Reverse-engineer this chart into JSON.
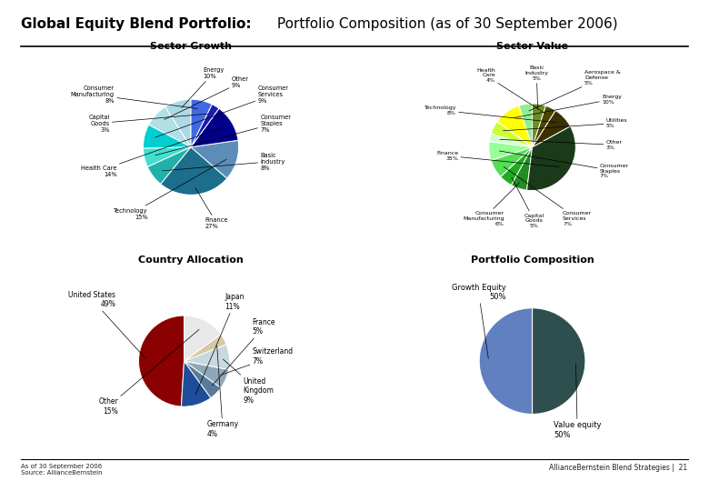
{
  "title_bold": "Global Equity Blend Portfolio:",
  "title_normal": " Portfolio Composition (as of 30 September 2006)",
  "sector_growth": {
    "title": "Sector Growth",
    "labels": [
      "Energy",
      "Other",
      "Consumer\nServices",
      "Consumer\nStaples",
      "Basic\nIndustry",
      "Finance",
      "Technology",
      "Health Care",
      "Capital\nGoods",
      "Consumer Manufacturing"
    ],
    "pcts": [
      "10%",
      "9%",
      "9%",
      "7%",
      "8%",
      "27%",
      "15%",
      "14%",
      "3%",
      "8%"
    ],
    "values": [
      10,
      9,
      9,
      7,
      8,
      27,
      15,
      14,
      3,
      8
    ],
    "colors": [
      "#ADD8E6",
      "#B0E0E6",
      "#00CED1",
      "#40E0D0",
      "#20B2AA",
      "#1C6E8C",
      "#5B8DB8",
      "#00008B",
      "#1B1BB3",
      "#4169E1"
    ]
  },
  "sector_value": {
    "title": "Sector Value",
    "labels": [
      "Aerospace &\nDefense",
      "Energy",
      "Utilities",
      "Other",
      "Consumer\nStaples",
      "Consumer\nServices",
      "Capital\nGoods",
      "Consumer\nManufacturing",
      "Finance",
      "Technology",
      "Health\nCare",
      "Basic\nIndustry"
    ],
    "pcts": [
      "5%",
      "10%",
      "5%",
      "3%",
      "7%",
      "7%",
      "5%",
      "6%",
      "35%",
      "8%",
      "4%",
      "5%"
    ],
    "values": [
      5,
      10,
      5,
      3,
      7,
      7,
      5,
      6,
      35,
      8,
      4,
      5
    ],
    "colors": [
      "#90EE90",
      "#FFFF00",
      "#CCFF33",
      "#CCFFCC",
      "#99FF99",
      "#55DD55",
      "#22AA22",
      "#228B22",
      "#1A3A1A",
      "#3B3000",
      "#4B4500",
      "#6B8E23"
    ]
  },
  "country_allocation": {
    "title": "Country Allocation",
    "labels": [
      "United States",
      "Japan",
      "France",
      "Switzerland",
      "United\nKingdom",
      "Germany",
      "Other"
    ],
    "pcts": [
      "49%",
      "11%",
      "5%",
      "7%",
      "9%",
      "4%",
      "15%"
    ],
    "values": [
      49,
      11,
      5,
      7,
      9,
      4,
      15
    ],
    "colors": [
      "#8B0000",
      "#1E4D99",
      "#5B7A99",
      "#8FA8B8",
      "#C8D8E0",
      "#D4C9A0",
      "#E8E8E8"
    ]
  },
  "portfolio_composition": {
    "title": "Portfolio Composition",
    "labels": [
      "Growth Equity\n50%",
      "Value equity\n50%"
    ],
    "values": [
      50,
      50
    ],
    "colors": [
      "#6080C0",
      "#2F4F4F"
    ]
  },
  "footer_left": "As of 30 September 2006\nSource: AllianceBernstein",
  "footer_right": "AllianceBernstein Blend Strategies |  21",
  "bg_color": "#FFFFFF"
}
